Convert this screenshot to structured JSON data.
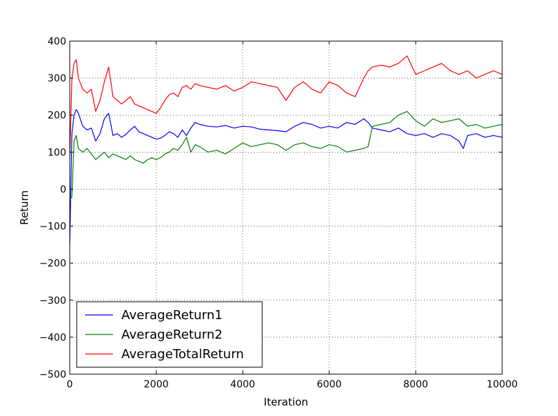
{
  "chart_data": {
    "type": "line",
    "title": "",
    "xlabel": "Iteration",
    "ylabel": "Return",
    "xlim": [
      0,
      10000
    ],
    "ylim": [
      -500,
      400
    ],
    "xticks": [
      0,
      2000,
      4000,
      6000,
      8000,
      10000
    ],
    "yticks": [
      -500,
      -400,
      -300,
      -200,
      -100,
      0,
      100,
      200,
      300,
      400
    ],
    "xtick_labels": [
      "0",
      "2000",
      "4000",
      "6000",
      "8000",
      "10000"
    ],
    "ytick_labels": [
      "−500",
      "−400",
      "−300",
      "−200",
      "−100",
      "0",
      "100",
      "200",
      "300",
      "400"
    ],
    "grid": true,
    "legend_position": "lower-left",
    "series": [
      {
        "name": "AverageReturn1",
        "color": "#0000ff",
        "x": [
          0,
          50,
          100,
          150,
          200,
          300,
          400,
          500,
          600,
          700,
          800,
          900,
          1000,
          1100,
          1200,
          1300,
          1400,
          1500,
          1600,
          1700,
          1800,
          1900,
          2000,
          2100,
          2200,
          2300,
          2400,
          2500,
          2600,
          2700,
          2800,
          2900,
          3000,
          3200,
          3400,
          3600,
          3800,
          4000,
          4200,
          4400,
          4600,
          4800,
          5000,
          5200,
          5400,
          5600,
          5800,
          6000,
          6200,
          6400,
          6600,
          6800,
          6900,
          7000,
          7200,
          7400,
          7600,
          7800,
          8000,
          8200,
          8400,
          8600,
          8800,
          9000,
          9100,
          9200,
          9400,
          9600,
          9800,
          10000
        ],
        "values": [
          -150,
          150,
          200,
          215,
          205,
          170,
          160,
          165,
          130,
          150,
          190,
          205,
          145,
          150,
          140,
          148,
          160,
          170,
          155,
          150,
          145,
          140,
          135,
          138,
          145,
          155,
          150,
          140,
          160,
          145,
          165,
          180,
          175,
          170,
          168,
          172,
          165,
          170,
          168,
          162,
          160,
          158,
          155,
          170,
          180,
          175,
          165,
          170,
          165,
          180,
          175,
          190,
          180,
          165,
          160,
          155,
          165,
          150,
          145,
          150,
          140,
          150,
          145,
          130,
          110,
          145,
          150,
          140,
          145,
          140
        ]
      },
      {
        "name": "AverageReturn2",
        "color": "#008000",
        "x": [
          0,
          50,
          100,
          150,
          200,
          300,
          400,
          500,
          600,
          700,
          800,
          900,
          1000,
          1100,
          1200,
          1300,
          1400,
          1500,
          1600,
          1700,
          1800,
          1900,
          2000,
          2100,
          2200,
          2300,
          2400,
          2500,
          2600,
          2700,
          2800,
          2900,
          3000,
          3200,
          3400,
          3600,
          3800,
          4000,
          4200,
          4400,
          4600,
          4800,
          5000,
          5200,
          5400,
          5600,
          5800,
          6000,
          6200,
          6400,
          6600,
          6800,
          6900,
          7000,
          7200,
          7400,
          7600,
          7800,
          8000,
          8200,
          8400,
          8600,
          8800,
          9000,
          9200,
          9400,
          9600,
          9800,
          10000
        ],
        "values": [
          -30,
          -20,
          130,
          145,
          110,
          100,
          110,
          95,
          80,
          90,
          100,
          85,
          95,
          90,
          85,
          80,
          90,
          80,
          75,
          70,
          80,
          85,
          80,
          85,
          95,
          100,
          110,
          105,
          120,
          140,
          100,
          120,
          115,
          100,
          105,
          95,
          110,
          125,
          115,
          120,
          125,
          120,
          105,
          120,
          125,
          115,
          110,
          120,
          115,
          100,
          105,
          110,
          115,
          170,
          175,
          180,
          200,
          210,
          185,
          170,
          190,
          180,
          185,
          190,
          170,
          175,
          165,
          170,
          175
        ]
      },
      {
        "name": "AverageTotalReturn",
        "color": "#ff0000",
        "x": [
          0,
          50,
          100,
          150,
          200,
          300,
          400,
          500,
          600,
          700,
          800,
          900,
          1000,
          1100,
          1200,
          1300,
          1400,
          1500,
          1600,
          1700,
          1800,
          1900,
          2000,
          2100,
          2200,
          2300,
          2400,
          2500,
          2600,
          2700,
          2800,
          2900,
          3000,
          3200,
          3400,
          3600,
          3800,
          4000,
          4200,
          4400,
          4600,
          4800,
          5000,
          5200,
          5400,
          5600,
          5800,
          6000,
          6200,
          6400,
          6600,
          6800,
          6900,
          7000,
          7200,
          7400,
          7600,
          7800,
          8000,
          8200,
          8400,
          8600,
          8800,
          9000,
          9200,
          9400,
          9600,
          9800,
          10000
        ],
        "values": [
          80,
          300,
          340,
          350,
          300,
          270,
          260,
          270,
          210,
          240,
          290,
          330,
          250,
          240,
          230,
          240,
          250,
          230,
          225,
          220,
          215,
          210,
          205,
          220,
          240,
          255,
          260,
          250,
          275,
          280,
          270,
          285,
          280,
          275,
          270,
          280,
          265,
          275,
          290,
          285,
          280,
          275,
          240,
          275,
          290,
          270,
          260,
          290,
          280,
          260,
          250,
          300,
          320,
          330,
          335,
          330,
          340,
          360,
          310,
          320,
          330,
          340,
          320,
          310,
          320,
          300,
          310,
          320,
          310
        ]
      }
    ]
  }
}
